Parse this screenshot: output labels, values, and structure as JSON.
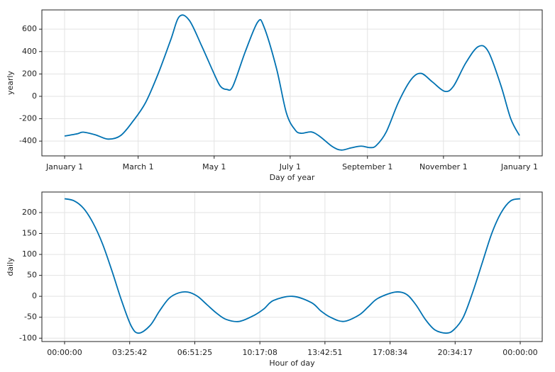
{
  "chart_data": [
    {
      "type": "line",
      "xlabel": "Day of year",
      "ylabel": "yearly",
      "color": "#0072b2",
      "grid": true,
      "x": [
        0,
        10,
        15,
        25,
        35,
        45,
        55,
        65,
        75,
        85,
        92,
        100,
        110,
        120,
        125,
        130,
        135,
        145,
        155,
        160,
        170,
        178,
        185,
        190,
        198,
        205,
        215,
        222,
        230,
        238,
        245,
        250,
        258,
        268,
        278,
        286,
        295,
        305,
        312,
        322,
        332,
        340,
        350,
        358,
        365
      ],
      "values": [
        -355,
        -335,
        -320,
        -345,
        -382,
        -350,
        -220,
        -55,
        200,
        500,
        712,
        680,
        450,
        200,
        90,
        62,
        90,
        400,
        665,
        620,
        250,
        -150,
        -300,
        -330,
        -318,
        -360,
        -450,
        -480,
        -460,
        -445,
        -458,
        -440,
        -320,
        -50,
        150,
        205,
        130,
        45,
        90,
        300,
        445,
        400,
        100,
        -200,
        -350
      ],
      "xlim": [
        -18.25,
        383.25
      ],
      "ylim": [
        -532,
        772
      ],
      "xticks": [
        {
          "value": 0,
          "label": "January 1"
        },
        {
          "value": 59,
          "label": "March 1"
        },
        {
          "value": 120,
          "label": "May 1"
        },
        {
          "value": 181,
          "label": "July 1"
        },
        {
          "value": 243,
          "label": "September 1"
        },
        {
          "value": 304,
          "label": "November 1"
        },
        {
          "value": 365,
          "label": "January 1"
        }
      ],
      "yticks": [
        -400,
        -200,
        0,
        200,
        400,
        600
      ]
    },
    {
      "type": "line",
      "xlabel": "Hour of day",
      "ylabel": "daily",
      "color": "#0072b2",
      "grid": true,
      "x": [
        0,
        1800,
        3600,
        5400,
        7200,
        9000,
        10800,
        12600,
        14040,
        16200,
        18000,
        19800,
        21600,
        23400,
        25200,
        27000,
        28800,
        30600,
        33120,
        36000,
        37800,
        39600,
        43200,
        46800,
        48600,
        50400,
        52920,
        55800,
        57600,
        59400,
        62640,
        64800,
        66600,
        68400,
        70200,
        72360,
        73800,
        75600,
        77400,
        79200,
        81000,
        82800,
        84600,
        86400
      ],
      "values": [
        233,
        228,
        210,
        175,
        125,
        60,
        -10,
        -70,
        -88,
        -70,
        -35,
        -5,
        8,
        10,
        0,
        -20,
        -40,
        -55,
        -60,
        -45,
        -30,
        -10,
        0,
        -15,
        -35,
        -50,
        -60,
        -45,
        -25,
        -5,
        10,
        5,
        -20,
        -55,
        -80,
        -88,
        -80,
        -50,
        10,
        80,
        150,
        200,
        228,
        233
      ],
      "xlim": [
        -4307,
        90572
      ],
      "ylim": [
        -108,
        249
      ],
      "xticks": [
        {
          "value": 0,
          "label": "00:00:00"
        },
        {
          "value": 12342.857,
          "label": "03:25:42"
        },
        {
          "value": 24685.714,
          "label": "06:51:25"
        },
        {
          "value": 37028.571,
          "label": "10:17:08"
        },
        {
          "value": 49371.429,
          "label": "13:42:51"
        },
        {
          "value": 61714.286,
          "label": "17:08:34"
        },
        {
          "value": 74057.143,
          "label": "20:34:17"
        },
        {
          "value": 86400,
          "label": "00:00:00"
        }
      ],
      "yticks": [
        -100,
        -50,
        0,
        50,
        100,
        150,
        200
      ]
    }
  ]
}
